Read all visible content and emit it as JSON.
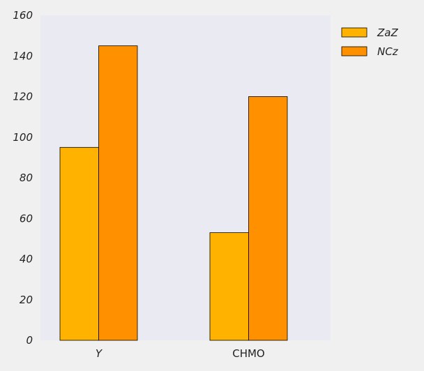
{
  "chart_data": {
    "type": "bar",
    "categories": [
      "Y",
      "CHMO"
    ],
    "series": [
      {
        "name": "ZaZ",
        "values": [
          95,
          53
        ],
        "color": "#ffb300"
      },
      {
        "name": "NCz",
        "values": [
          145,
          120
        ],
        "color": "#ff9100"
      }
    ],
    "ylim": [
      0,
      160
    ],
    "yticks": [
      "0",
      "20",
      "40",
      "60",
      "80",
      "100",
      "120",
      "140",
      "160"
    ],
    "grid": false,
    "legend_position": "right-top",
    "plot_background": "#eaeaf2",
    "bar_edge_color": "#000000"
  }
}
